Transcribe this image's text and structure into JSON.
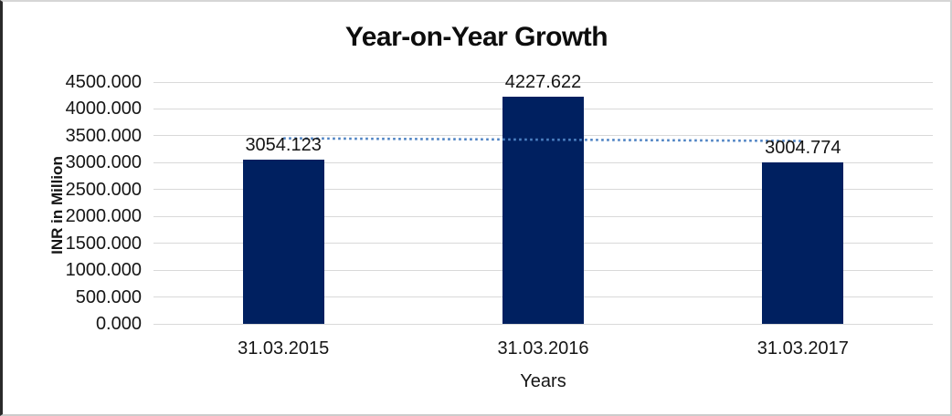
{
  "chart_data": {
    "type": "bar",
    "title": "Year-on-Year Growth",
    "xlabel": "Years",
    "ylabel": "INR in Million",
    "categories": [
      "31.03.2015",
      "31.03.2016",
      "31.03.2017"
    ],
    "values": [
      3054.123,
      4227.622,
      3004.774
    ],
    "data_labels": [
      "3054.123",
      "4227.622",
      "3004.774"
    ],
    "y_ticks": [
      "4500.000",
      "4000.000",
      "3500.000",
      "3000.000",
      "2500.000",
      "2000.000",
      "1500.000",
      "1000.000",
      "500.000",
      "0.000"
    ],
    "ylim": [
      0,
      4500
    ],
    "grid": "horizontal-only",
    "legend": "none",
    "bar_color": "#002060",
    "gridline_color": "#d9d9d9",
    "text_color": "#151515",
    "trendline": {
      "type": "linear",
      "style": "dotted",
      "color": "#4d82c3",
      "start_value": 3453.5,
      "end_value": 3404.2
    }
  }
}
